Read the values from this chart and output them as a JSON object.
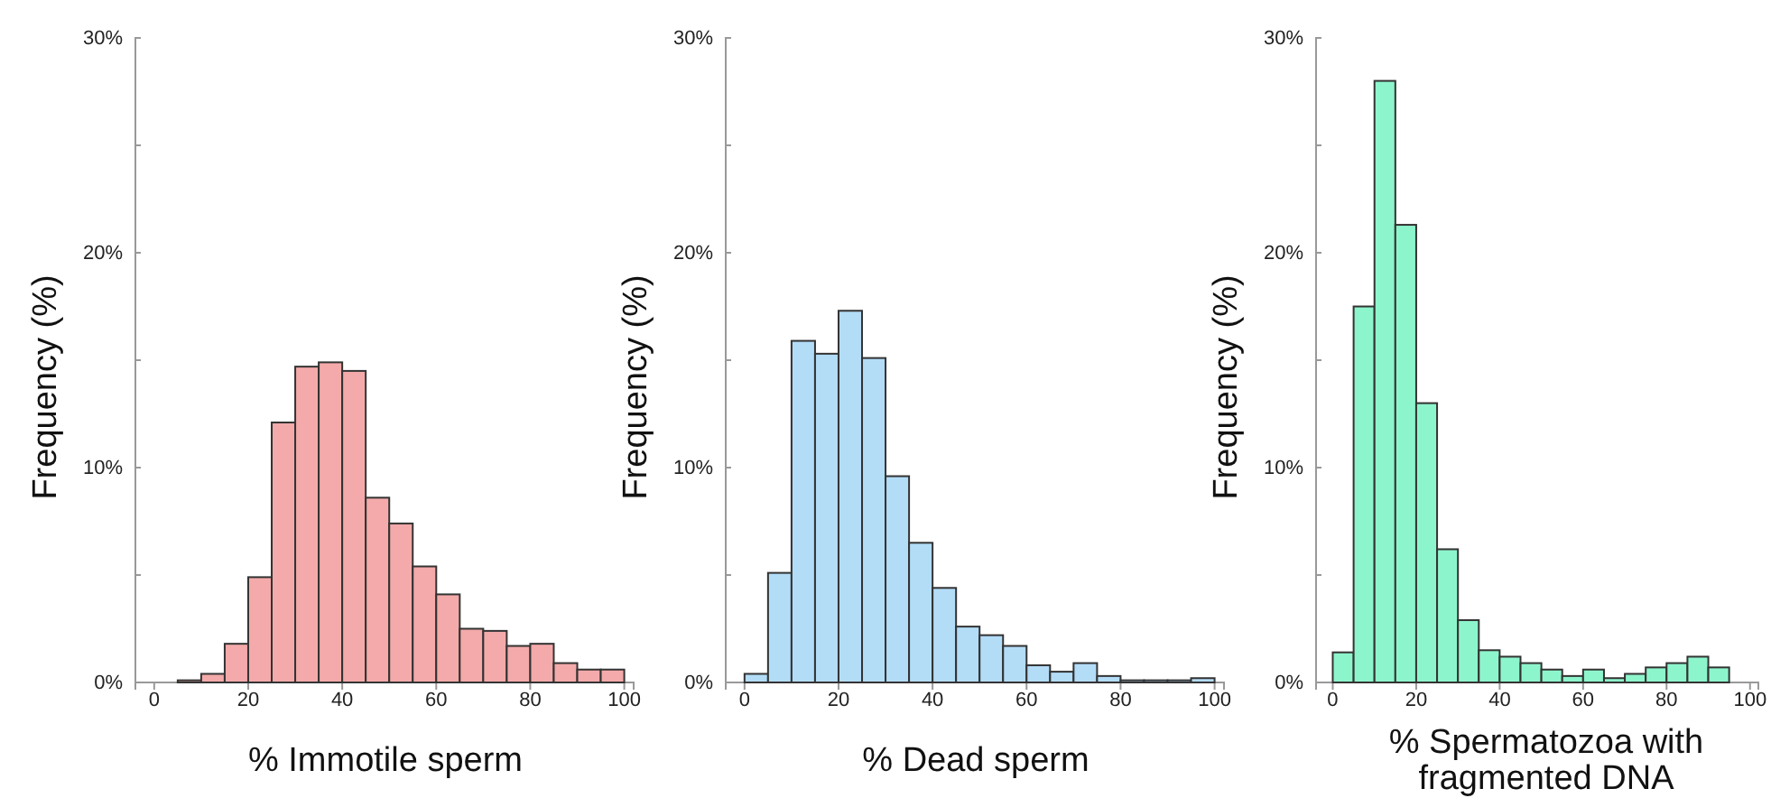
{
  "chart_data": [
    {
      "type": "histogram",
      "xlabel": "% Immotile sperm",
      "ylabel": "Frequency (%)",
      "color": "#f4aaaa",
      "bins": [
        0,
        5,
        10,
        15,
        20,
        25,
        30,
        35,
        40,
        45,
        50,
        55,
        60,
        65,
        70,
        75,
        80,
        85,
        90,
        95,
        100
      ],
      "values": [
        0,
        0.1,
        0.4,
        1.8,
        4.9,
        12.1,
        14.7,
        14.9,
        14.5,
        8.6,
        7.4,
        5.4,
        4.1,
        2.5,
        2.4,
        1.7,
        1.8,
        0.9,
        0.6,
        0.6
      ],
      "xlim": [
        -4,
        102
      ],
      "xticks": [
        0,
        20,
        40,
        60,
        80,
        100
      ],
      "ylim": [
        0,
        30
      ],
      "yticks": [
        {
          "value": 0,
          "label": "0%"
        },
        {
          "value": 5,
          "label": null
        },
        {
          "value": 10,
          "label": "10%"
        },
        {
          "value": 15,
          "label": null
        },
        {
          "value": 20,
          "label": "20%"
        },
        {
          "value": 25,
          "label": null
        },
        {
          "value": 30,
          "label": "30%"
        }
      ]
    },
    {
      "type": "histogram",
      "xlabel": "% Dead sperm",
      "ylabel": "Frequency (%)",
      "color": "#b3dcf7",
      "bins": [
        0,
        5,
        10,
        15,
        20,
        25,
        30,
        35,
        40,
        45,
        50,
        55,
        60,
        65,
        70,
        75,
        80,
        85,
        90,
        95,
        100
      ],
      "values": [
        0.4,
        5.1,
        15.9,
        15.3,
        17.3,
        15.1,
        9.6,
        6.5,
        4.4,
        2.6,
        2.2,
        1.7,
        0.8,
        0.5,
        0.9,
        0.3,
        0.1,
        0.1,
        0.1,
        0.2
      ],
      "xlim": [
        -4,
        102
      ],
      "xticks": [
        0,
        20,
        40,
        60,
        80,
        100
      ],
      "ylim": [
        0,
        30
      ],
      "yticks": [
        {
          "value": 0,
          "label": "0%"
        },
        {
          "value": 5,
          "label": null
        },
        {
          "value": 10,
          "label": "10%"
        },
        {
          "value": 15,
          "label": null
        },
        {
          "value": 20,
          "label": "20%"
        },
        {
          "value": 25,
          "label": null
        },
        {
          "value": 30,
          "label": "30%"
        }
      ]
    },
    {
      "type": "histogram",
      "xlabel": "% Spermatozoa with fragmented DNA",
      "ylabel": "Frequency (%)",
      "color": "#8df5cc",
      "bins": [
        0,
        5,
        10,
        15,
        20,
        25,
        30,
        35,
        40,
        45,
        50,
        55,
        60,
        65,
        70,
        75,
        80,
        85,
        90,
        95
      ],
      "values": [
        1.4,
        17.5,
        28,
        21.3,
        13,
        6.2,
        2.9,
        1.5,
        1.2,
        0.9,
        0.6,
        0.3,
        0.6,
        0.2,
        0.4,
        0.7,
        0.9,
        1.2,
        0.7
      ],
      "xlim": [
        -4,
        102
      ],
      "xticks": [
        0,
        20,
        40,
        60,
        80,
        100
      ],
      "ylim": [
        0,
        30
      ],
      "yticks": [
        {
          "value": 0,
          "label": "0%"
        },
        {
          "value": 5,
          "label": null
        },
        {
          "value": 10,
          "label": "10%"
        },
        {
          "value": 15,
          "label": null
        },
        {
          "value": 20,
          "label": "20%"
        },
        {
          "value": 25,
          "label": null
        },
        {
          "value": 30,
          "label": "30%"
        }
      ]
    }
  ]
}
